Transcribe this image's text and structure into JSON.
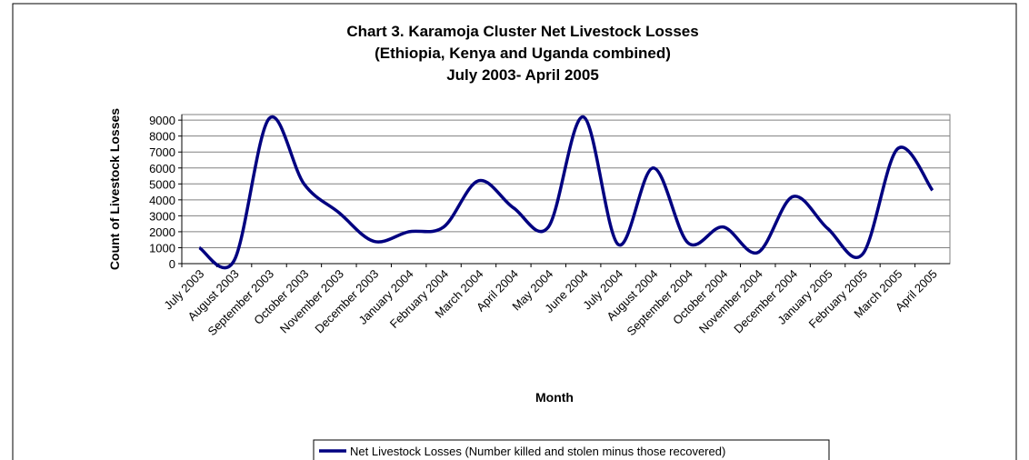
{
  "chart_data": {
    "type": "line",
    "title": "Chart 3. Karamoja Cluster Net Livestock Losses",
    "subtitle": [
      "(Ethiopia, Kenya and Uganda combined)",
      "July 2003- April 2005"
    ],
    "x_label": "Month",
    "y_label": "Count of Livestock Losses",
    "categories": [
      "July 2003",
      "August 2003",
      "September 2003",
      "October 2003",
      "November 2003",
      "December 2003",
      "January 2004",
      "February 2004",
      "March 2004",
      "April 2004",
      "May 2004",
      "June 2004",
      "July 2004",
      "August 2004",
      "September 2004",
      "October 2004",
      "November 2004",
      "December 2004",
      "January 2005",
      "February 2005",
      "March 2005",
      "April 2005"
    ],
    "series": [
      {
        "name": "Net Livestock Losses (Number killed and stolen minus those recovered)",
        "color": "#000080",
        "values": [
          1000,
          200,
          9100,
          5000,
          3200,
          1400,
          2000,
          2300,
          5200,
          3500,
          2300,
          9200,
          1200,
          6000,
          1300,
          2300,
          700,
          4200,
          2200,
          600,
          7200,
          4600
        ]
      }
    ],
    "ylim": [
      0,
      9350
    ],
    "yticks": [
      0,
      1000,
      2000,
      3000,
      4000,
      5000,
      6000,
      7000,
      8000,
      9000
    ],
    "grid": true,
    "legend": "bottom"
  }
}
